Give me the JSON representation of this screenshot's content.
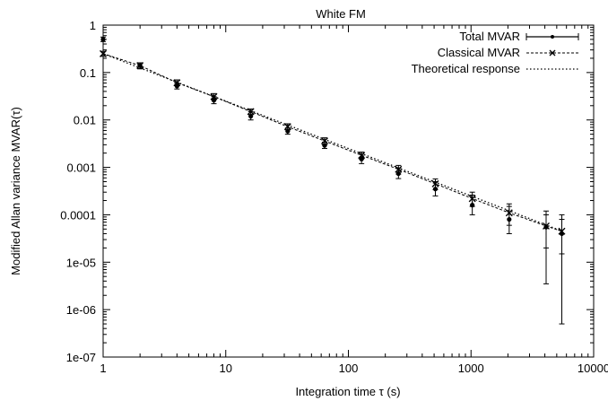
{
  "chart_data": {
    "type": "scatter",
    "title": "White FM",
    "xlabel": "Integration time τ (s)",
    "ylabel": "Modified Allan variance MVAR(τ)",
    "xscale": "log",
    "yscale": "log",
    "xlim": [
      1,
      10000
    ],
    "ylim": [
      1e-07,
      1
    ],
    "grid": false,
    "legend_position": "top-right",
    "x_ticks": [
      1,
      10,
      100,
      1000,
      10000
    ],
    "x_tick_labels": [
      "1",
      "10",
      "100",
      "1000",
      "10000"
    ],
    "y_ticks": [
      1,
      0.1,
      0.01,
      0.001,
      0.0001,
      1e-05,
      1e-06,
      1e-07
    ],
    "y_tick_labels": [
      "1",
      "0.1",
      "0.01",
      "0.001",
      "0.0001",
      "1e-05",
      "1e-06",
      "1e-07"
    ],
    "series": [
      {
        "name": "Total MVAR",
        "style": "solid-errorbar",
        "points": [
          {
            "x": 1,
            "y": 0.5,
            "ylo": 0.45,
            "yhi": 0.56
          },
          {
            "x": 2,
            "y": 0.14,
            "ylo": 0.12,
            "yhi": 0.16
          },
          {
            "x": 4,
            "y": 0.052,
            "ylo": 0.045,
            "yhi": 0.06
          },
          {
            "x": 8,
            "y": 0.026,
            "ylo": 0.022,
            "yhi": 0.031
          },
          {
            "x": 16,
            "y": 0.012,
            "ylo": 0.01,
            "yhi": 0.015
          },
          {
            "x": 32,
            "y": 0.0058,
            "ylo": 0.005,
            "yhi": 0.0068
          },
          {
            "x": 64,
            "y": 0.0029,
            "ylo": 0.0025,
            "yhi": 0.0034
          },
          {
            "x": 128,
            "y": 0.0015,
            "ylo": 0.0012,
            "yhi": 0.0019
          },
          {
            "x": 256,
            "y": 0.00074,
            "ylo": 0.00058,
            "yhi": 0.00095
          },
          {
            "x": 512,
            "y": 0.00035,
            "ylo": 0.00025,
            "yhi": 0.0005
          },
          {
            "x": 1024,
            "y": 0.00016,
            "ylo": 0.0001,
            "yhi": 0.00026
          },
          {
            "x": 2048,
            "y": 8e-05,
            "ylo": 4e-05,
            "yhi": 0.00015
          },
          {
            "x": 4096,
            "y": 5.5e-05,
            "ylo": 3.5e-06,
            "yhi": 0.00012
          },
          {
            "x": 5500,
            "y": 4e-05,
            "ylo": 5e-07,
            "yhi": 0.0001
          }
        ]
      },
      {
        "name": "Classical MVAR",
        "style": "dashed-x",
        "points": [
          {
            "x": 1,
            "y": 0.25,
            "ylo": 0.22,
            "yhi": 0.28
          },
          {
            "x": 2,
            "y": 0.14,
            "ylo": 0.12,
            "yhi": 0.16
          },
          {
            "x": 4,
            "y": 0.061,
            "ylo": 0.053,
            "yhi": 0.07
          },
          {
            "x": 8,
            "y": 0.031,
            "ylo": 0.027,
            "yhi": 0.036
          },
          {
            "x": 16,
            "y": 0.015,
            "ylo": 0.013,
            "yhi": 0.017
          },
          {
            "x": 32,
            "y": 0.0072,
            "ylo": 0.0062,
            "yhi": 0.0083
          },
          {
            "x": 64,
            "y": 0.0036,
            "ylo": 0.003,
            "yhi": 0.0042
          },
          {
            "x": 128,
            "y": 0.0018,
            "ylo": 0.0015,
            "yhi": 0.0021
          },
          {
            "x": 256,
            "y": 0.00091,
            "ylo": 0.00072,
            "yhi": 0.0011
          },
          {
            "x": 512,
            "y": 0.00045,
            "ylo": 0.00034,
            "yhi": 0.00057
          },
          {
            "x": 1024,
            "y": 0.00022,
            "ylo": 0.00015,
            "yhi": 0.0003
          },
          {
            "x": 2048,
            "y": 0.00011,
            "ylo": 6e-05,
            "yhi": 0.00017
          },
          {
            "x": 4096,
            "y": 5.8e-05,
            "ylo": 2e-05,
            "yhi": 0.0001
          },
          {
            "x": 5500,
            "y": 4.5e-05,
            "ylo": 1.5e-05,
            "yhi": 8e-05
          }
        ]
      },
      {
        "name": "Theoretical response",
        "style": "dotted-line",
        "line": [
          {
            "x": 1,
            "y": 0.25
          },
          {
            "x": 5500,
            "y": 4.54e-05
          }
        ]
      }
    ]
  }
}
